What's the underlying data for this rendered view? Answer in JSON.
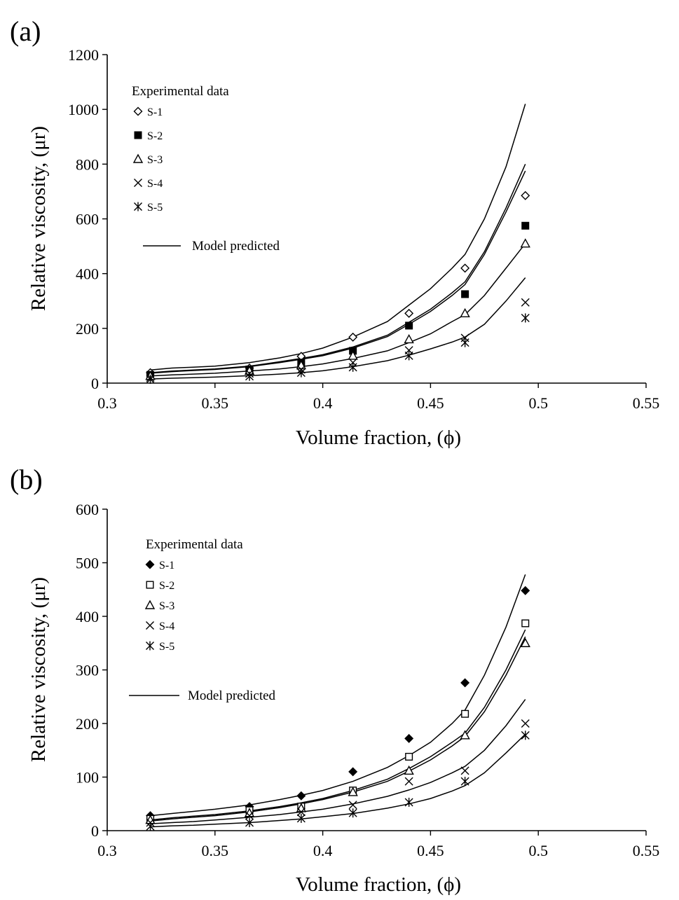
{
  "chart_data": [
    {
      "panel_label": "(a)",
      "type": "scatter",
      "xlabel": "Volume fraction, (ϕ)",
      "ylabel": "Relative viscosity, (μr)",
      "xlim": [
        0.3,
        0.55
      ],
      "ylim": [
        0,
        1200
      ],
      "x_ticks": [
        0.3,
        0.35,
        0.4,
        0.45,
        0.5,
        0.55
      ],
      "x_tick_labels": [
        "0.3",
        "0.35",
        "0.4",
        "0.45",
        "0.5",
        "0.55"
      ],
      "y_ticks": [
        0,
        200,
        400,
        600,
        800,
        1000,
        1200
      ],
      "y_tick_labels": [
        "0",
        "200",
        "400",
        "600",
        "800",
        "1000",
        "1200"
      ],
      "grid": false,
      "legend": {
        "title": "Experimental data",
        "placement": "top-left",
        "line_label": "Model predicted"
      },
      "series": [
        {
          "name": "S-1",
          "marker": "diamond-open",
          "x": [
            0.32,
            0.366,
            0.39,
            0.414,
            0.44,
            0.466,
            0.494
          ],
          "y": [
            38,
            55,
            98,
            168,
            255,
            420,
            685
          ]
        },
        {
          "name": "S-2",
          "marker": "square-filled",
          "x": [
            0.32,
            0.366,
            0.39,
            0.414,
            0.44,
            0.466,
            0.494
          ],
          "y": [
            30,
            50,
            75,
            118,
            210,
            325,
            575
          ]
        },
        {
          "name": "S-3",
          "marker": "triangle-open",
          "x": [
            0.32,
            0.366,
            0.39,
            0.414,
            0.44,
            0.466,
            0.494
          ],
          "y": [
            26,
            45,
            65,
            100,
            160,
            255,
            510
          ]
        },
        {
          "name": "S-4",
          "marker": "x",
          "x": [
            0.32,
            0.366,
            0.39,
            0.414,
            0.44,
            0.466,
            0.494
          ],
          "y": [
            20,
            35,
            50,
            75,
            120,
            165,
            295
          ]
        },
        {
          "name": "S-5",
          "marker": "asterisk",
          "x": [
            0.32,
            0.366,
            0.39,
            0.414,
            0.44,
            0.466,
            0.494
          ],
          "y": [
            14,
            25,
            38,
            58,
            100,
            148,
            238
          ]
        }
      ],
      "model_lines": [
        {
          "x": [
            0.32,
            0.33,
            0.34,
            0.35,
            0.366,
            0.38,
            0.39,
            0.4,
            0.414,
            0.43,
            0.44,
            0.45,
            0.46,
            0.466,
            0.475,
            0.485,
            0.494
          ],
          "y": [
            48,
            55,
            58,
            62,
            75,
            92,
            108,
            128,
            168,
            225,
            285,
            345,
            420,
            470,
            600,
            790,
            1020
          ]
        },
        {
          "x": [
            0.32,
            0.33,
            0.34,
            0.35,
            0.366,
            0.38,
            0.39,
            0.4,
            0.414,
            0.43,
            0.44,
            0.45,
            0.46,
            0.466,
            0.475,
            0.485,
            0.494
          ],
          "y": [
            38,
            44,
            48,
            52,
            62,
            78,
            90,
            104,
            132,
            175,
            222,
            270,
            330,
            370,
            480,
            640,
            800
          ]
        },
        {
          "x": [
            0.32,
            0.33,
            0.34,
            0.35,
            0.366,
            0.38,
            0.39,
            0.4,
            0.414,
            0.43,
            0.44,
            0.45,
            0.46,
            0.466,
            0.475,
            0.485,
            0.494
          ],
          "y": [
            36,
            42,
            46,
            50,
            60,
            75,
            87,
            100,
            128,
            170,
            215,
            262,
            320,
            360,
            470,
            625,
            775
          ]
        },
        {
          "x": [
            0.32,
            0.33,
            0.34,
            0.35,
            0.366,
            0.38,
            0.39,
            0.4,
            0.414,
            0.43,
            0.44,
            0.45,
            0.46,
            0.466,
            0.475,
            0.485,
            0.494
          ],
          "y": [
            26,
            30,
            33,
            36,
            44,
            52,
            60,
            70,
            90,
            118,
            148,
            180,
            225,
            250,
            320,
            420,
            510
          ]
        },
        {
          "x": [
            0.32,
            0.33,
            0.34,
            0.35,
            0.366,
            0.38,
            0.39,
            0.4,
            0.414,
            0.43,
            0.44,
            0.45,
            0.46,
            0.466,
            0.475,
            0.485,
            0.494
          ],
          "y": [
            15,
            18,
            20,
            22,
            27,
            33,
            38,
            45,
            60,
            82,
            102,
            125,
            150,
            168,
            215,
            300,
            385
          ]
        }
      ]
    },
    {
      "panel_label": "(b)",
      "type": "scatter",
      "xlabel": "Volume fraction, (ϕ)",
      "ylabel": "Relative viscosity, (μr)",
      "xlim": [
        0.3,
        0.55
      ],
      "ylim": [
        0,
        600
      ],
      "x_ticks": [
        0.3,
        0.35,
        0.4,
        0.45,
        0.5,
        0.55
      ],
      "x_tick_labels": [
        "0.3",
        "0.35",
        "0.4",
        "0.45",
        "0.5",
        "0.55"
      ],
      "y_ticks": [
        0,
        100,
        200,
        300,
        400,
        500,
        600
      ],
      "y_tick_labels": [
        "0",
        "100",
        "200",
        "300",
        "400",
        "500",
        "600"
      ],
      "grid": false,
      "legend": {
        "title": "Experimental data",
        "placement": "top-left",
        "line_label": "Model predicted"
      },
      "series": [
        {
          "name": "S-1",
          "marker": "diamond-filled",
          "x": [
            0.32,
            0.366,
            0.39,
            0.414,
            0.44,
            0.466,
            0.494
          ],
          "y": [
            28,
            45,
            65,
            110,
            172,
            276,
            448
          ]
        },
        {
          "name": "S-2",
          "marker": "square-open",
          "x": [
            0.32,
            0.366,
            0.39,
            0.414,
            0.44,
            0.466,
            0.494
          ],
          "y": [
            22,
            38,
            45,
            75,
            138,
            218,
            387
          ]
        },
        {
          "name": "S-3",
          "marker": "triangle-open",
          "x": [
            0.32,
            0.366,
            0.39,
            0.414,
            0.44,
            0.466,
            0.494
          ],
          "y": [
            20,
            33,
            42,
            72,
            112,
            178,
            350
          ]
        },
        {
          "name": "S-4",
          "marker": "x",
          "x": [
            0.32,
            0.366,
            0.39,
            0.414,
            0.44,
            0.466,
            0.494
          ],
          "y": [
            15,
            28,
            35,
            48,
            92,
            112,
            200
          ]
        },
        {
          "name": "S-5",
          "marker": "asterisk",
          "x": [
            0.32,
            0.366,
            0.39,
            0.414,
            0.44,
            0.466,
            0.494
          ],
          "y": [
            8,
            15,
            23,
            33,
            53,
            92,
            178
          ]
        }
      ],
      "model_lines": [
        {
          "x": [
            0.32,
            0.33,
            0.34,
            0.35,
            0.366,
            0.38,
            0.39,
            0.4,
            0.414,
            0.43,
            0.44,
            0.45,
            0.46,
            0.466,
            0.475,
            0.485,
            0.494
          ],
          "y": [
            28,
            32,
            36,
            40,
            48,
            58,
            66,
            75,
            92,
            118,
            140,
            165,
            200,
            225,
            290,
            380,
            478
          ]
        },
        {
          "x": [
            0.32,
            0.33,
            0.34,
            0.35,
            0.366,
            0.38,
            0.39,
            0.4,
            0.414,
            0.43,
            0.44,
            0.45,
            0.46,
            0.466,
            0.475,
            0.485,
            0.494
          ],
          "y": [
            20,
            24,
            27,
            30,
            37,
            45,
            52,
            60,
            75,
            96,
            116,
            138,
            165,
            182,
            230,
            300,
            375
          ]
        },
        {
          "x": [
            0.32,
            0.33,
            0.34,
            0.35,
            0.366,
            0.38,
            0.39,
            0.4,
            0.414,
            0.43,
            0.44,
            0.45,
            0.46,
            0.466,
            0.475,
            0.485,
            0.494
          ],
          "y": [
            18,
            22,
            25,
            28,
            35,
            43,
            50,
            58,
            72,
            92,
            111,
            132,
            158,
            176,
            222,
            290,
            362
          ]
        },
        {
          "x": [
            0.32,
            0.33,
            0.34,
            0.35,
            0.366,
            0.38,
            0.39,
            0.4,
            0.414,
            0.43,
            0.44,
            0.45,
            0.46,
            0.466,
            0.475,
            0.485,
            0.494
          ],
          "y": [
            13,
            15,
            17,
            20,
            25,
            30,
            35,
            40,
            50,
            64,
            76,
            90,
            108,
            120,
            150,
            196,
            245
          ]
        },
        {
          "x": [
            0.32,
            0.33,
            0.34,
            0.35,
            0.366,
            0.38,
            0.39,
            0.4,
            0.414,
            0.43,
            0.44,
            0.45,
            0.46,
            0.466,
            0.475,
            0.485,
            0.494
          ],
          "y": [
            7,
            9,
            10,
            12,
            15,
            19,
            22,
            26,
            32,
            42,
            50,
            60,
            74,
            84,
            108,
            145,
            180
          ]
        }
      ]
    }
  ]
}
